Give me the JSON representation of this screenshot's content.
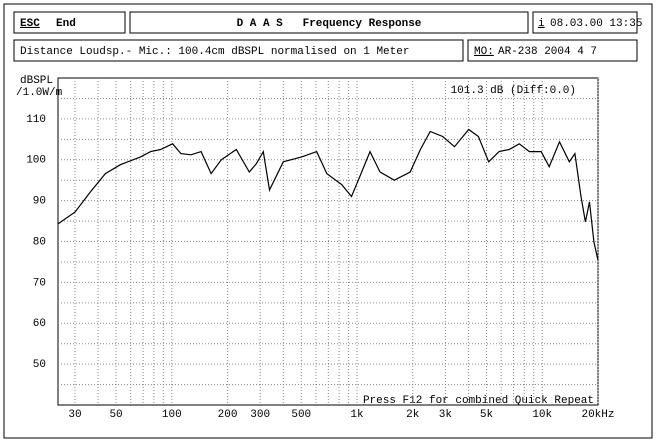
{
  "header": {
    "esc": "ESC",
    "end": "End",
    "title": "D A A S   Frequency Response",
    "info": "i",
    "date": "08.03.00 13:35",
    "description": "Distance Loudsp.- Mic.: 100.4cm dBSPL normalised on 1 Meter",
    "model_key": "MO:",
    "model": "AR-238 2004 4 7"
  },
  "chart_data": {
    "type": "line",
    "y_label": "dBSPL",
    "y_label_2": "/1.0W/m",
    "annotation": "101.3 dB (Diff:0.0)",
    "footer": "Press F12 for combined Quick Repeat",
    "x": [
      24.3,
      30,
      36.3,
      43.8,
      52.8,
      67.8,
      76.9,
      87,
      101,
      112,
      127,
      144,
      163,
      185,
      223,
      262,
      286,
      312,
      337,
      400,
      502,
      606,
      687,
      828,
      934,
      1034,
      1175,
      1330,
      1590,
      1936,
      2200,
      2483,
      2901,
      3360,
      4010,
      4520,
      5140,
      5850,
      6630,
      7510,
      8520,
      9870,
      10900,
      12400,
      14000,
      15000,
      16200,
      17100,
      18000,
      19000,
      20000
    ],
    "series": [
      {
        "color": "#000000",
        "values": [
          84.3,
          87.2,
          92.1,
          96.6,
          98.8,
          100.7,
          102,
          102.5,
          103.9,
          101.5,
          101.2,
          102,
          96.6,
          100,
          102.5,
          97,
          99,
          102,
          92.6,
          99.5,
          100.7,
          102,
          96.6,
          93.9,
          91,
          95.8,
          102,
          97,
          95,
          97,
          102.5,
          106.9,
          105.7,
          103.2,
          107.4,
          105.7,
          99.5,
          102,
          102.5,
          103.9,
          102,
          102,
          98.3,
          104.4,
          99.5,
          101.5,
          91,
          84.8,
          89.7,
          79.9,
          75.4
        ]
      }
    ],
    "xlim": [
      24.3,
      20000
    ],
    "xscale": "log",
    "xticks": [
      30,
      50,
      100,
      200,
      300,
      500,
      {
        "value": 1000,
        "label": "1k"
      },
      {
        "value": 2000,
        "label": "2k"
      },
      {
        "value": 3000,
        "label": "3k"
      },
      {
        "value": 5000,
        "label": "5k"
      },
      {
        "value": 10000,
        "label": "10k"
      },
      {
        "value": 20000,
        "label": "20kHz"
      }
    ],
    "x_minor_grid": [
      40,
      60,
      70,
      80,
      90,
      400,
      600,
      700,
      800,
      900,
      4000,
      6000,
      7000,
      8000,
      9000
    ],
    "ylim": [
      40,
      120
    ],
    "yticks": [
      50,
      60,
      70,
      80,
      90,
      100,
      110
    ],
    "y_minor_grid": [
      45,
      55,
      65,
      75,
      85,
      95,
      105,
      115
    ],
    "grid": true
  }
}
